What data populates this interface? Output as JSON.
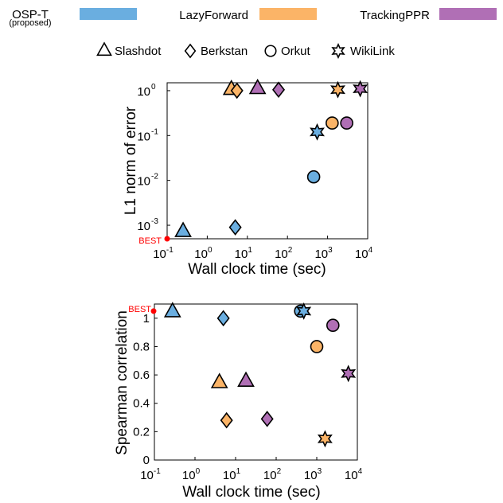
{
  "legend": {
    "methods": [
      {
        "name": "OSP-T",
        "sub": "(proposed)",
        "color": "#6aaee0"
      },
      {
        "name": "LazyForward",
        "color": "#fbb467"
      },
      {
        "name": "TrackingPPR",
        "color": "#b06fb5"
      }
    ],
    "datasets": [
      {
        "name": "Slashdot",
        "marker": "triangle"
      },
      {
        "name": "Berkstan",
        "marker": "diamond"
      },
      {
        "name": "Orkut",
        "marker": "circle"
      },
      {
        "name": "WikiLink",
        "marker": "star"
      }
    ]
  },
  "best_label": "BEST",
  "chart_data": [
    {
      "type": "scatter",
      "xlabel": "Wall clock time (sec)",
      "ylabel": "L1 norm of error",
      "xscale": "log",
      "yscale": "log",
      "xlim": [
        0.1,
        10000
      ],
      "ylim": [
        0.0005,
        1.5
      ],
      "xticks": [
        {
          "base": "10",
          "exp": "-1"
        },
        {
          "base": "10",
          "exp": "0"
        },
        {
          "base": "10",
          "exp": "1"
        },
        {
          "base": "10",
          "exp": "2"
        },
        {
          "base": "10",
          "exp": "3"
        },
        {
          "base": "10",
          "exp": "4"
        }
      ],
      "yticks": [
        {
          "base": "10",
          "exp": "-3"
        },
        {
          "base": "10",
          "exp": "-2"
        },
        {
          "base": "10",
          "exp": "-1"
        },
        {
          "base": "10",
          "exp": "0"
        }
      ],
      "best": {
        "x": 0.1,
        "y": 0.0005
      },
      "grid": false,
      "points": [
        {
          "method": "OSP-T",
          "dataset": "Slashdot",
          "x": 0.25,
          "y": 0.00075
        },
        {
          "method": "OSP-T",
          "dataset": "Berkstan",
          "x": 5,
          "y": 0.0009
        },
        {
          "method": "OSP-T",
          "dataset": "Orkut",
          "x": 450,
          "y": 0.012
        },
        {
          "method": "OSP-T",
          "dataset": "WikiLink",
          "x": 550,
          "y": 0.12
        },
        {
          "method": "LazyForward",
          "dataset": "Slashdot",
          "x": 4,
          "y": 1.1
        },
        {
          "method": "LazyForward",
          "dataset": "Berkstan",
          "x": 5.5,
          "y": 1.0
        },
        {
          "method": "LazyForward",
          "dataset": "Orkut",
          "x": 1300,
          "y": 0.19
        },
        {
          "method": "LazyForward",
          "dataset": "WikiLink",
          "x": 1800,
          "y": 1.05
        },
        {
          "method": "TrackingPPR",
          "dataset": "Slashdot",
          "x": 18,
          "y": 1.15
        },
        {
          "method": "TrackingPPR",
          "dataset": "Berkstan",
          "x": 60,
          "y": 1.05
        },
        {
          "method": "TrackingPPR",
          "dataset": "Orkut",
          "x": 3000,
          "y": 0.19
        },
        {
          "method": "TrackingPPR",
          "dataset": "WikiLink",
          "x": 6500,
          "y": 1.1
        }
      ]
    },
    {
      "type": "scatter",
      "xlabel": "Wall clock time (sec)",
      "ylabel": "Spearman correlation",
      "xscale": "log",
      "yscale": "linear",
      "xlim": [
        0.1,
        10000
      ],
      "ylim": [
        0,
        1.1
      ],
      "xticks": [
        {
          "base": "10",
          "exp": "-1"
        },
        {
          "base": "10",
          "exp": "0"
        },
        {
          "base": "10",
          "exp": "1"
        },
        {
          "base": "10",
          "exp": "2"
        },
        {
          "base": "10",
          "exp": "3"
        },
        {
          "base": "10",
          "exp": "4"
        }
      ],
      "yticks": [
        "0",
        "0.2",
        "0.4",
        "0.6",
        "0.8",
        "1"
      ],
      "best": {
        "x": 0.1,
        "y": 1.05
      },
      "grid": false,
      "points": [
        {
          "method": "OSP-T",
          "dataset": "Slashdot",
          "x": 0.28,
          "y": 1.05
        },
        {
          "method": "OSP-T",
          "dataset": "Berkstan",
          "x": 5,
          "y": 1.0
        },
        {
          "method": "OSP-T",
          "dataset": "Orkut",
          "x": 400,
          "y": 1.05
        },
        {
          "method": "OSP-T",
          "dataset": "WikiLink",
          "x": 480,
          "y": 1.05
        },
        {
          "method": "LazyForward",
          "dataset": "Slashdot",
          "x": 4,
          "y": 0.55
        },
        {
          "method": "LazyForward",
          "dataset": "Berkstan",
          "x": 6,
          "y": 0.28
        },
        {
          "method": "LazyForward",
          "dataset": "Orkut",
          "x": 1000,
          "y": 0.8
        },
        {
          "method": "LazyForward",
          "dataset": "WikiLink",
          "x": 1600,
          "y": 0.15
        },
        {
          "method": "TrackingPPR",
          "dataset": "Slashdot",
          "x": 18,
          "y": 0.56
        },
        {
          "method": "TrackingPPR",
          "dataset": "Berkstan",
          "x": 60,
          "y": 0.29
        },
        {
          "method": "TrackingPPR",
          "dataset": "Orkut",
          "x": 2500,
          "y": 0.95
        },
        {
          "method": "TrackingPPR",
          "dataset": "WikiLink",
          "x": 6000,
          "y": 0.61
        }
      ]
    }
  ]
}
